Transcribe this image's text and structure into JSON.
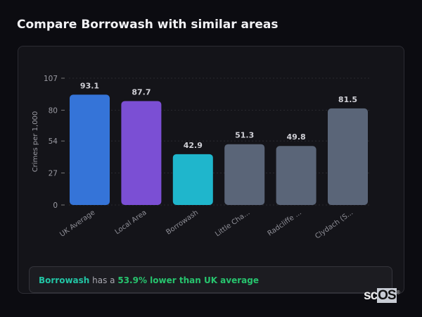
{
  "title": "Compare Borrowash with similar areas",
  "chart_data": {
    "type": "bar",
    "title": "",
    "xlabel": "",
    "ylabel": "Crimes per 1,000",
    "ylim": [
      0,
      107
    ],
    "yticks": [
      0,
      27,
      54,
      80,
      107
    ],
    "grid": true,
    "categories": [
      "UK Average",
      "Local Area",
      "Borrowash",
      "Little Cha...",
      "Radcliffe ...",
      "Clydach (S..."
    ],
    "values": [
      93.1,
      87.7,
      42.9,
      51.3,
      49.8,
      81.5
    ],
    "data_labels": [
      "93.1",
      "87.7",
      "42.9",
      "51.3",
      "49.8",
      "81.5"
    ],
    "colors": [
      "#3574d8",
      "#7b4fd4",
      "#1fb6cc",
      "#5a6578",
      "#5a6578",
      "#5a6578"
    ]
  },
  "summary": {
    "area": "Borrowash",
    "middle": " has a ",
    "comparison": "53.9% lower than UK average"
  },
  "logo": {
    "text_a": "sc",
    "text_b": "OS",
    "mark": "®"
  }
}
